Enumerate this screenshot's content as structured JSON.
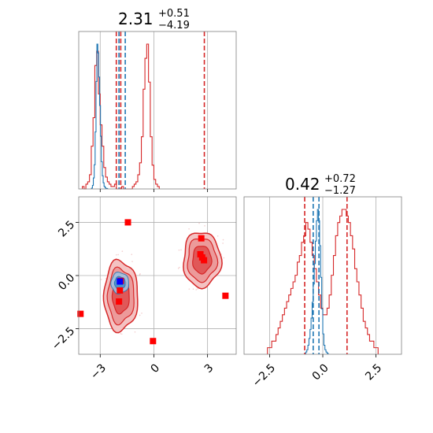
{
  "chart_data": [
    {
      "type": "histogram",
      "panel": "top-left",
      "title": {
        "value": "2.31",
        "upper": "+0.51",
        "lower": "−4.19"
      },
      "xlim": [
        -4.2,
        4.6
      ],
      "grid": true,
      "bins": {
        "x0": -4.0,
        "width": 0.1,
        "red_start_index": 3,
        "blue_start_index": 18
      },
      "series": [
        {
          "color": "#d62728",
          "counts": [
            1,
            0,
            2,
            3,
            6,
            18,
            30,
            52,
            58,
            40,
            27,
            18,
            9,
            5,
            3,
            2,
            1,
            1,
            2,
            0,
            0,
            0,
            1,
            0,
            0,
            0,
            0,
            0,
            1,
            2,
            3,
            6,
            11,
            22,
            42,
            55,
            61,
            45,
            22,
            10,
            4,
            2,
            1
          ]
        },
        {
          "color": "#1f77b4",
          "counts": [
            2,
            8,
            25,
            55,
            130,
            245,
            330,
            310,
            255,
            190,
            120,
            62,
            30,
            14,
            6,
            3,
            1,
            1
          ]
        }
      ],
      "vlines": [
        {
          "color": "#d62728",
          "x": -2.1
        },
        {
          "color": "#d62728",
          "x": -1.85
        },
        {
          "color": "#d62728",
          "x": 2.82
        },
        {
          "color": "#1f77b4",
          "x": -1.95
        },
        {
          "color": "#1f77b4",
          "x": -1.6
        }
      ]
    },
    {
      "type": "scatter",
      "panel": "bottom-left",
      "xlim": [
        -4.2,
        4.6
      ],
      "ylim": [
        -3.7,
        3.7
      ],
      "xticks": [
        -3,
        0,
        3
      ],
      "xticklabels": [
        "−3",
        "0",
        "3"
      ],
      "yticks": [
        2.5,
        0.0,
        -2.5
      ],
      "yticklabels": [
        "2.5",
        "0.0",
        "−2.5"
      ],
      "grid": true,
      "contours_red": [
        {
          "cx": -1.85,
          "cy": -0.95,
          "rx": 0.95,
          "ry": 1.65
        },
        {
          "cx": 2.68,
          "cy": 0.75,
          "rx": 1.05,
          "ry": 1.3
        }
      ],
      "contours_blue": [
        {
          "cx": -1.9,
          "cy": -0.35,
          "rx": 0.5,
          "ry": 0.5
        }
      ],
      "markers_red": [
        [
          -1.45,
          2.5
        ],
        [
          -4.1,
          -1.8
        ],
        [
          -0.05,
          -3.08
        ],
        [
          4.0,
          -0.95
        ],
        [
          2.65,
          1.75
        ],
        [
          2.6,
          1.0
        ],
        [
          2.8,
          0.72
        ],
        [
          2.7,
          0.85
        ],
        [
          -1.95,
          -1.22
        ],
        [
          -1.9,
          -0.7
        ],
        [
          -1.85,
          -0.25
        ]
      ],
      "markers_blue": [
        [
          -1.9,
          -0.28
        ]
      ]
    },
    {
      "type": "histogram",
      "panel": "bottom-right",
      "title": {
        "value": "0.42",
        "upper": "+0.72",
        "lower": "−1.27"
      },
      "xlim": [
        -3.7,
        3.7
      ],
      "xticks": [
        -2.5,
        0.0,
        2.5
      ],
      "xticklabels": [
        "−2.5",
        "0.0",
        "2.5"
      ],
      "grid": true,
      "bins": {
        "x0": -2.6,
        "width": 0.1,
        "blue_x0": -0.8,
        "blue_width": 0.05
      },
      "series": [
        {
          "color": "#d62728",
          "counts": [
            1,
            1,
            2,
            2,
            3,
            4,
            5,
            6,
            7,
            8,
            9,
            10,
            11,
            12,
            14,
            15,
            17,
            18,
            20,
            19,
            17,
            15,
            13,
            11,
            9,
            7,
            6,
            6,
            7,
            9,
            12,
            15,
            18,
            20,
            21,
            22,
            22,
            21,
            20,
            18,
            16,
            13,
            11,
            9,
            7,
            5,
            4,
            3,
            2,
            2,
            1,
            1
          ]
        },
        {
          "color": "#1f77b4",
          "counts": [
            2,
            4,
            8,
            14,
            22,
            32,
            46,
            62,
            80,
            100,
            118,
            128,
            118,
            96,
            68,
            40,
            18,
            8,
            4,
            2,
            1
          ]
        }
      ],
      "vlines": [
        {
          "color": "#d62728",
          "x": -0.85
        },
        {
          "color": "#d62728",
          "x": 1.14
        },
        {
          "color": "#1f77b4",
          "x": -0.45
        },
        {
          "color": "#1f77b4",
          "x": -0.18
        }
      ]
    }
  ]
}
